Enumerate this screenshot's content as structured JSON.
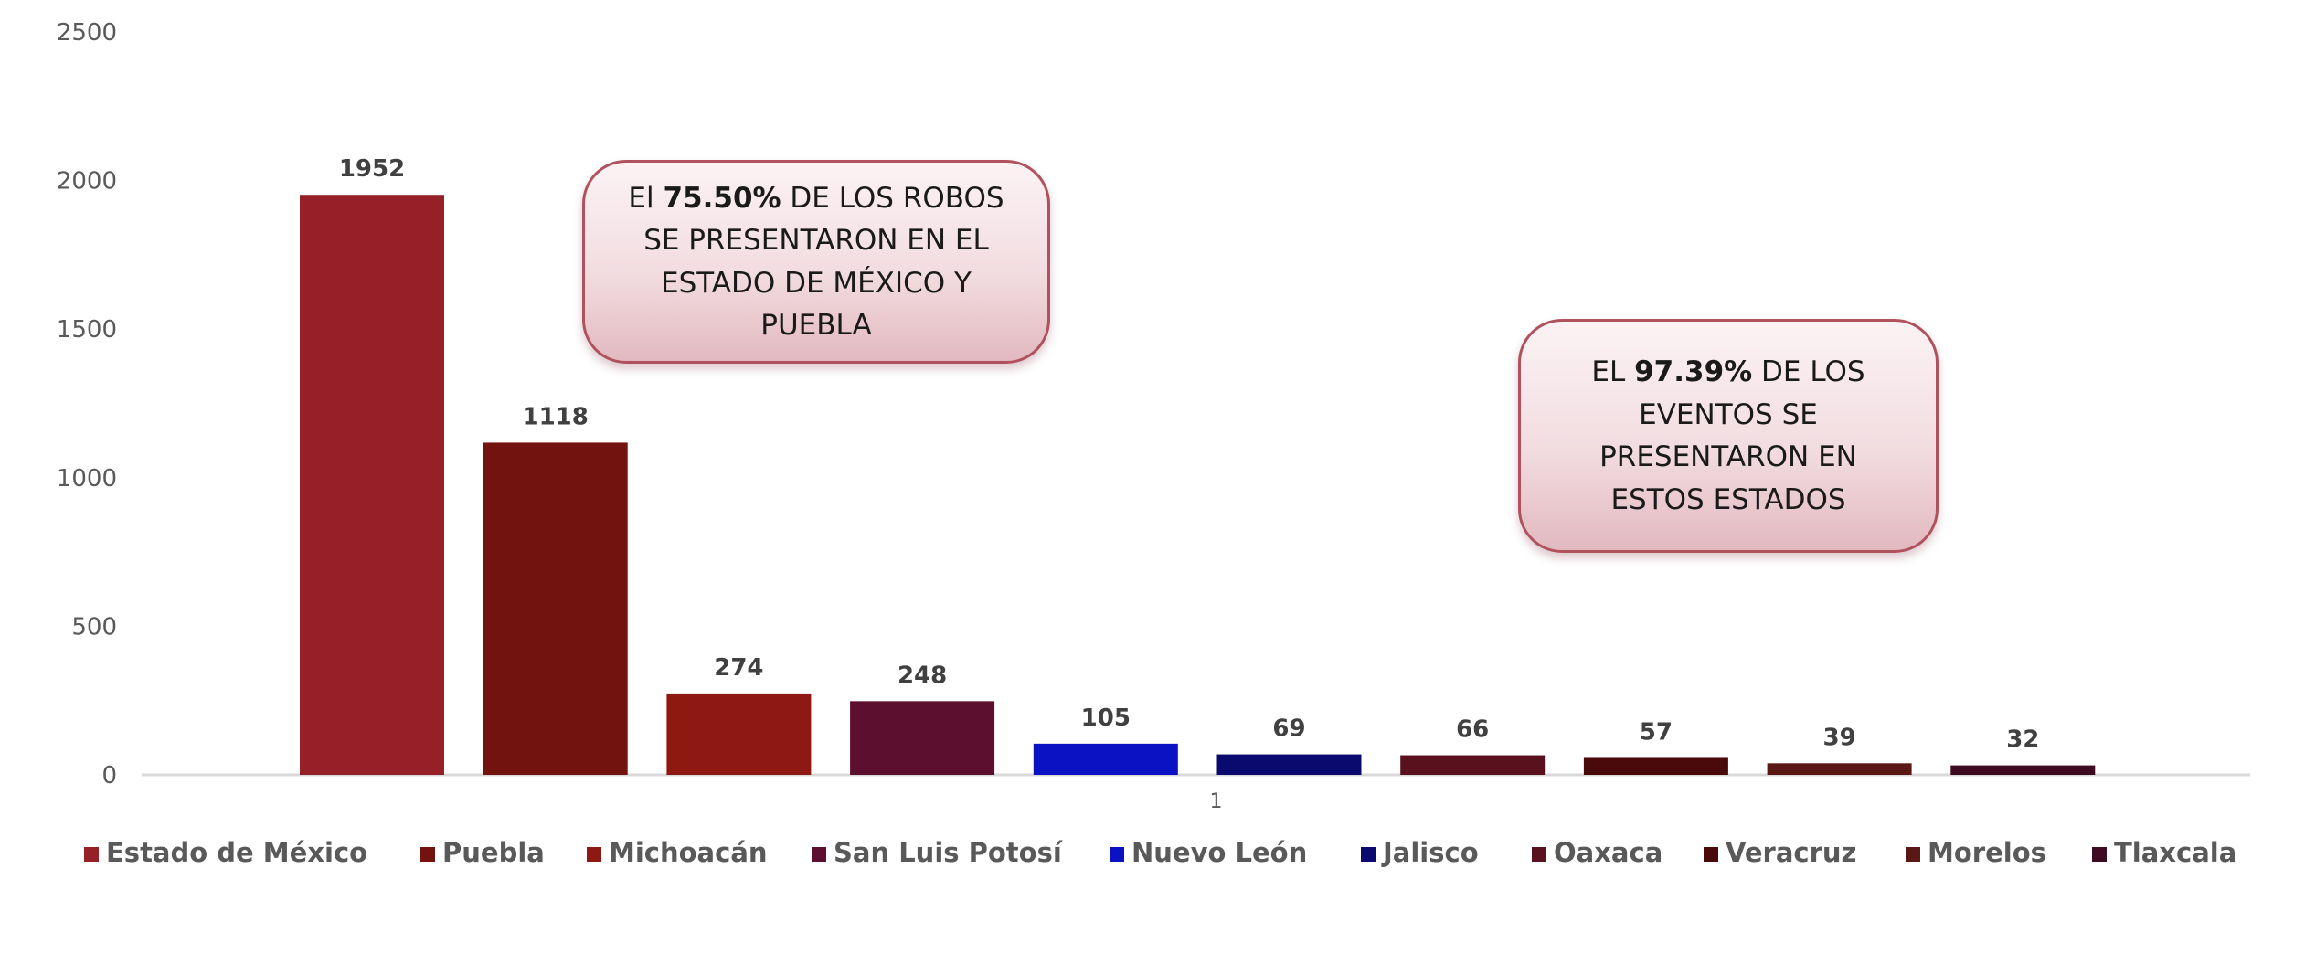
{
  "chart_data": {
    "type": "bar",
    "x_category": "1",
    "categories": [
      "Estado de México",
      "Puebla",
      "Michoacán",
      "San Luis Potosí",
      "Nuevo León",
      "Jalisco",
      "Oaxaca",
      "Veracruz",
      "Morelos",
      "Tlaxcala"
    ],
    "values": [
      1952,
      1118,
      274,
      248,
      105,
      69,
      66,
      57,
      39,
      32
    ],
    "colors": [
      "#962028",
      "#72130f",
      "#8e1812",
      "#5c0f2e",
      "#0a12c4",
      "#0a0a6e",
      "#5a111e",
      "#4a0a0c",
      "#5a1814",
      "#3e0b22"
    ],
    "ylim": [
      0,
      2500
    ],
    "yticks": [
      0,
      500,
      1000,
      1500,
      2000,
      2500
    ],
    "ytick_labels": [
      "0",
      "500",
      "1000",
      "1500",
      "2000",
      "2500"
    ],
    "title": "",
    "xlabel": "",
    "ylabel": "",
    "grid": false,
    "legend_position": "bottom",
    "data_labels": [
      "1952",
      "1118",
      "274",
      "248",
      "105",
      "69",
      "66",
      "57",
      "39",
      "32"
    ]
  },
  "annotations": {
    "callout_1": {
      "line1_prefix": "El ",
      "line1_bold": "75.50%",
      "line1_suffix": " DE LOS  ROBOS",
      "line2": "SE PRESENTARON EN EL",
      "line3": "ESTADO DE  MÉXICO Y",
      "line4": "PUEBLA"
    },
    "callout_2": {
      "line1_prefix": "EL ",
      "line1_bold": "97.39%",
      "line1_suffix": " DE LOS",
      "line2": "EVENTOS SE",
      "line3": "PRESENTARON EN",
      "line4": "ESTOS ESTADOS"
    }
  }
}
